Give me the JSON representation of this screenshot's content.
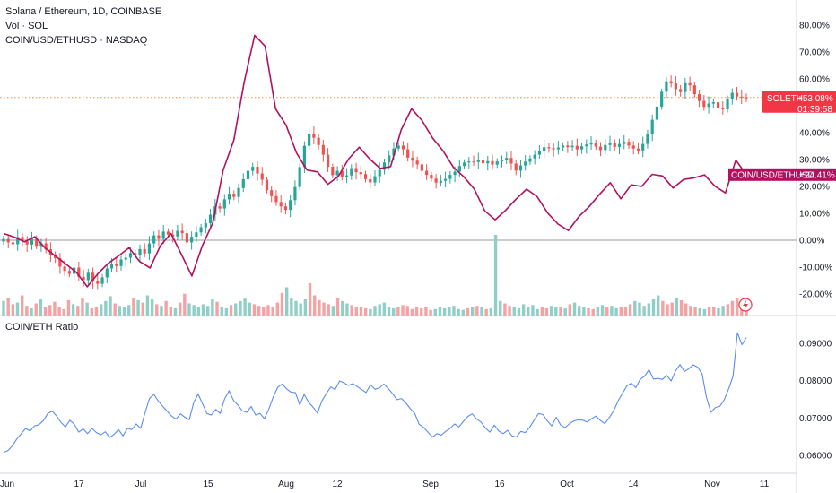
{
  "header": {
    "title": "Solana / Ethereum, 1D, COINBASE",
    "vol_label": "Vol · SOL",
    "compare_label": "COIN/USD/ETHUSD · NASDAQ",
    "ratio_label": "COIN/ETH Ratio"
  },
  "badges": {
    "soleth_symbol": "SOLETH",
    "soleth_value": "+53.08%",
    "soleth_timer": "01:39:58",
    "coin_label": "COIN/USD/ETHUSD",
    "coin_value": "+24.41%"
  },
  "colors": {
    "up": "#26a69a",
    "down": "#ef5350",
    "vol_up": "#8fcfc7",
    "vol_down": "#f3a3a3",
    "compare_line": "#b2115f",
    "ratio_line": "#5b8def",
    "price_line": "#f28b3e",
    "badge_soleth": "#f23645",
    "badge_coin": "#b2115f"
  },
  "icons": {
    "flash": "lightning-icon"
  },
  "chart_data": [
    {
      "type": "candlestick",
      "title": "Solana / Ethereum, 1D, COINBASE",
      "x_ticks": [
        "Jun",
        "17",
        "Jul",
        "15",
        "Aug",
        "12",
        "Sep",
        "16",
        "Oct",
        "14",
        "Nov",
        "11"
      ],
      "y_ticks": [
        "80.00%",
        "70.00%",
        "60.00%",
        "50.00%",
        "40.00%",
        "30.00%",
        "20.00%",
        "10.00%",
        "0.00%",
        "-10.00%",
        "-20.00%"
      ],
      "ylim": [
        -27,
        88
      ],
      "last_value": 53.08,
      "series": [
        {
          "name": "SOLETH",
          "values": [
            0.5,
            -0.8,
            -1.5,
            1.2,
            -0.4,
            -1.6,
            0.6,
            -2.1,
            -1.2,
            -3.4,
            -5.6,
            -6.7,
            -9.8,
            -11.4,
            -12.5,
            -10.2,
            -13.6,
            -14.8,
            -12.1,
            -15.3,
            -16.2,
            -13.8,
            -10.5,
            -8.9,
            -9.6,
            -7.2,
            -6.5,
            -4.8,
            -5.6,
            -3.3,
            -4.9,
            -1.2,
            1.8,
            0.5,
            3.2,
            2.1,
            1.4,
            3.5,
            2.6,
            -0.8,
            1.3,
            2.9,
            4.8,
            6.3,
            9.5,
            12.6,
            11.8,
            15.2,
            17.3,
            16.1,
            19.4,
            22.7,
            25.8,
            27.3,
            24.8,
            22.5,
            18.6,
            16.4,
            14.2,
            12.6,
            11.3,
            14.9,
            19.8,
            27.2,
            35.1,
            39.6,
            38.1,
            35.4,
            31.8,
            27.3,
            24.2,
            25.8,
            23.7,
            24.1,
            26.8,
            25.3,
            24.6,
            22.7,
            21.5,
            23.8,
            26.2,
            28.9,
            31.5,
            34.1,
            35.2,
            33.8,
            30.7,
            29.6,
            28.2,
            25.8,
            24.3,
            22.9,
            21.4,
            22.1,
            22.8,
            24.3,
            25.5,
            27.6,
            28.9,
            29.3,
            29.1,
            29.8,
            28.6,
            29.4,
            28.1,
            29.3,
            29.8,
            30.6,
            28.5,
            25.9,
            27.8,
            29.2,
            30.4,
            31.8,
            33.1,
            34.6,
            34.2,
            33.8,
            34.5,
            35.2,
            34.6,
            35.1,
            33.8,
            34.9,
            35.6,
            36.2,
            34.8,
            33.5,
            35.4,
            36.1,
            34.7,
            35.8,
            36.6,
            35.2,
            34.1,
            33.4,
            35.8,
            39.6,
            44.8,
            49.7,
            55.2,
            59.1,
            58.3,
            56.2,
            55.1,
            58.4,
            57.6,
            54.3,
            51.8,
            49.6,
            50.8,
            51.3,
            49.2,
            48.7,
            52.6,
            54.8,
            53.4,
            53.1,
            53.08
          ]
        },
        {
          "name": "COIN/USD/ETHUSD",
          "values": [
            2.5,
            1.2,
            -0.6,
            1.3,
            -3.0,
            -6.0,
            -9.0,
            -12.1,
            -17.3,
            -12.5,
            -8.6,
            -5.8,
            -2.8,
            -7.9,
            -10.3,
            -2.0,
            2.5,
            -5.3,
            -13.3,
            -2.0,
            6.4,
            26.2,
            37.1,
            58.8,
            76.2,
            72.2,
            48.9,
            42.8,
            32.5,
            26.1,
            25.4,
            20.8,
            23.8,
            30.3,
            34.6,
            30.2,
            26.7,
            27.4,
            41.0,
            48.9,
            44.5,
            38.1,
            33.3,
            27.1,
            23.6,
            19.0,
            10.9,
            7.6,
            11.2,
            15.3,
            19.0,
            16.2,
            10.2,
            6.0,
            3.6,
            8.8,
            12.6,
            17.2,
            21.4,
            15.4,
            20.6,
            20.0,
            24.5,
            23.9,
            19.4,
            22.6,
            23.2,
            24.3,
            20.1,
            17.6,
            29.8,
            24.4
          ]
        }
      ]
    },
    {
      "type": "bar",
      "title": "Vol · SOL",
      "values": [
        18,
        22,
        14,
        16,
        25,
        12,
        9,
        15,
        20,
        11,
        13,
        17,
        10,
        8,
        19,
        14,
        12,
        21,
        16,
        9,
        11,
        14,
        18,
        24,
        15,
        12,
        10,
        13,
        22,
        19,
        16,
        25,
        20,
        14,
        12,
        18,
        11,
        9,
        16,
        27,
        15,
        13,
        10,
        14,
        12,
        20,
        17,
        11,
        9,
        13,
        15,
        18,
        21,
        16,
        14,
        12,
        10,
        13,
        11,
        16,
        28,
        35,
        22,
        18,
        15,
        20,
        40,
        25,
        19,
        16,
        14,
        12,
        22,
        18,
        15,
        13,
        11,
        10,
        9,
        8,
        12,
        14,
        16,
        10,
        9,
        11,
        13,
        12,
        8,
        10,
        9,
        11,
        7,
        8,
        10,
        9,
        11,
        12,
        8,
        7,
        9,
        10,
        12,
        11,
        8,
        9,
        100,
        18,
        15,
        12,
        10,
        9,
        14,
        11,
        13,
        8,
        10,
        9,
        12,
        11,
        10,
        9,
        14,
        16,
        12,
        10,
        9,
        8,
        11,
        13,
        10,
        12,
        9,
        11,
        10,
        14,
        18,
        16,
        12,
        15,
        20,
        25,
        18,
        14,
        16,
        22,
        19,
        15,
        12,
        10,
        9,
        8,
        11,
        10,
        9,
        12,
        14,
        18,
        22,
        15,
        10
      ],
      "ylim": [
        0,
        100
      ]
    },
    {
      "type": "line",
      "title": "COIN/ETH Ratio",
      "y_ticks": [
        "0.09000",
        "0.08000",
        "0.07000",
        "0.06000"
      ],
      "ylim": [
        0.0575,
        0.0958
      ],
      "series": [
        {
          "name": "COIN/ETH Ratio",
          "values": [
            0.0608,
            0.0613,
            0.0626,
            0.0644,
            0.0658,
            0.0672,
            0.0665,
            0.0679,
            0.0682,
            0.0693,
            0.0712,
            0.0718,
            0.0705,
            0.0688,
            0.0676,
            0.0694,
            0.0683,
            0.0662,
            0.0671,
            0.0658,
            0.0672,
            0.0661,
            0.0655,
            0.0663,
            0.0648,
            0.0656,
            0.0669,
            0.0652,
            0.0672,
            0.0669,
            0.0684,
            0.0672,
            0.0714,
            0.0752,
            0.0763,
            0.0745,
            0.0731,
            0.0718,
            0.0705,
            0.0697,
            0.0711,
            0.0702,
            0.0695,
            0.0741,
            0.0764,
            0.0738,
            0.0712,
            0.0708,
            0.0723,
            0.0712,
            0.0751,
            0.0773,
            0.0747,
            0.0735,
            0.0719,
            0.0715,
            0.0731,
            0.0708,
            0.0712,
            0.0698,
            0.0724,
            0.0756,
            0.0782,
            0.0791,
            0.0778,
            0.0769,
            0.0768,
            0.0735,
            0.0763,
            0.0742,
            0.0729,
            0.0713,
            0.0746,
            0.0765,
            0.0783,
            0.0776,
            0.0799,
            0.0794,
            0.0787,
            0.0792,
            0.0784,
            0.0776,
            0.0768,
            0.0789,
            0.0777,
            0.078,
            0.0791,
            0.0779,
            0.0765,
            0.0749,
            0.0752,
            0.074,
            0.0725,
            0.0712,
            0.0683,
            0.0675,
            0.0662,
            0.0649,
            0.0658,
            0.0654,
            0.0664,
            0.0672,
            0.0684,
            0.0676,
            0.0691,
            0.0704,
            0.0711,
            0.0697,
            0.0689,
            0.0673,
            0.0662,
            0.0681,
            0.0665,
            0.0658,
            0.0667,
            0.0652,
            0.0649,
            0.0664,
            0.0661,
            0.0675,
            0.0694,
            0.0712,
            0.0709,
            0.0692,
            0.0679,
            0.0702,
            0.0681,
            0.0674,
            0.0685,
            0.0692,
            0.0695,
            0.0694,
            0.0689,
            0.0698,
            0.0705,
            0.0693,
            0.0685,
            0.0701,
            0.0719,
            0.0746,
            0.0766,
            0.0786,
            0.0793,
            0.0781,
            0.0803,
            0.0812,
            0.0829,
            0.0804,
            0.0806,
            0.0803,
            0.0814,
            0.0799,
            0.0826,
            0.0843,
            0.0824,
            0.0832,
            0.0842,
            0.0836,
            0.0818,
            0.0755,
            0.0715,
            0.0728,
            0.0731,
            0.0749,
            0.0778,
            0.0812,
            0.0928,
            0.0896,
            0.0915
          ]
        }
      ]
    }
  ]
}
